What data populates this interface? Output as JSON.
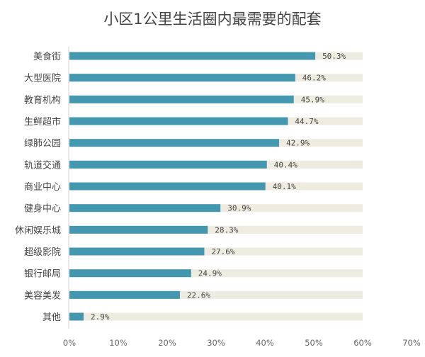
{
  "chart_data": {
    "type": "bar",
    "orientation": "horizontal",
    "title": "小区1公里生活圈内最需要的配套",
    "categories": [
      "美食街",
      "大型医院",
      "教育机构",
      "生鲜超市",
      "绿肺公园",
      "轨道交通",
      "商业中心",
      "健身中心",
      "休闲娱乐城",
      "超级影院",
      "银行邮局",
      "美容美发",
      "其他"
    ],
    "values": [
      50.3,
      46.2,
      45.9,
      44.7,
      42.9,
      40.4,
      40.1,
      30.9,
      28.3,
      27.6,
      24.9,
      22.6,
      2.9
    ],
    "value_labels": [
      "50.3%",
      "46.2%",
      "45.9%",
      "44.7%",
      "42.9%",
      "40.4%",
      "40.1%",
      "30.9%",
      "28.3%",
      "27.6%",
      "24.9%",
      "22.6%",
      "2.9%"
    ],
    "background_track_max": 60,
    "xlim": [
      0,
      70
    ],
    "xticks": [
      "0%",
      "10%",
      "20%",
      "30%",
      "40%",
      "50%",
      "60%",
      "70%"
    ],
    "xlabel": "",
    "ylabel": "",
    "grid": false,
    "colors": {
      "bar": "#4397AE",
      "track": "#EEEBE0",
      "axis": "#D0D0D0"
    }
  }
}
